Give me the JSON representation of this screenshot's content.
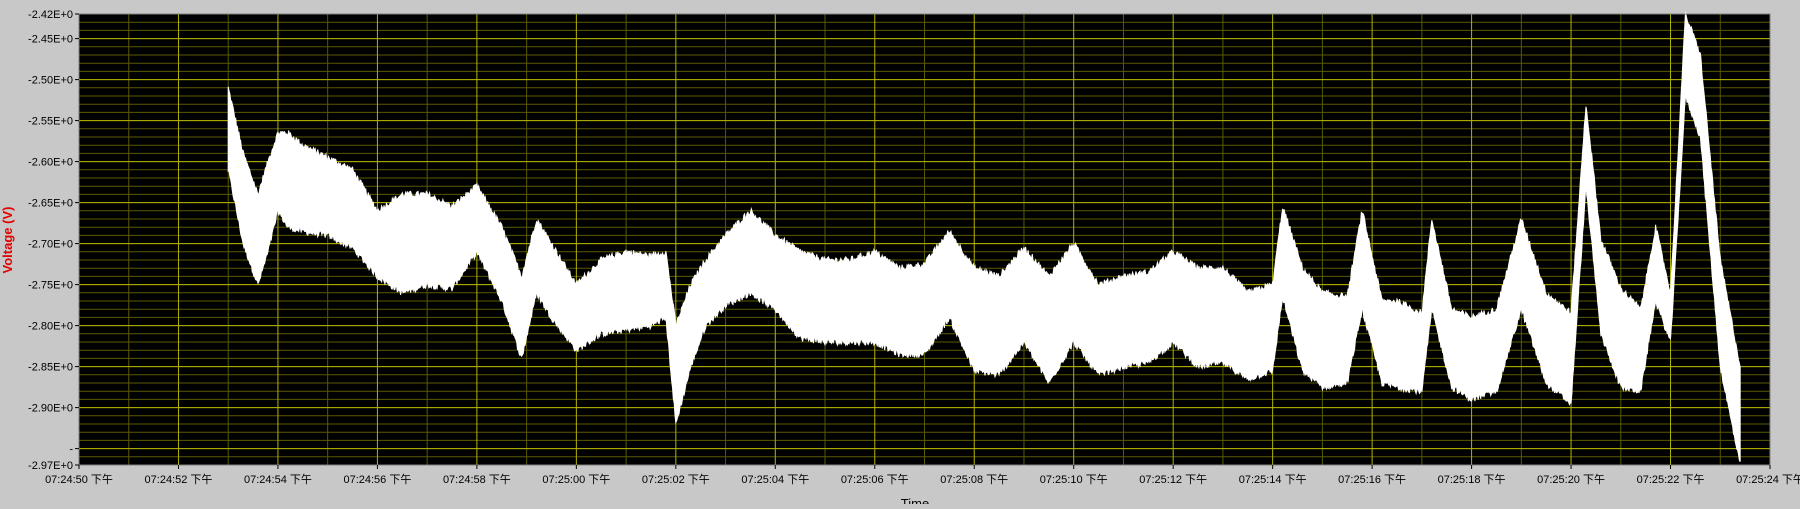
{
  "chart_data": {
    "type": "line",
    "title": "",
    "xlabel": "Time",
    "ylabel": "Voltage (V)",
    "colors": {
      "plot_background": "#000000",
      "frame_background": "#c8c8c8",
      "major_grid": "#b4b400",
      "minor_grid": "#5a5a00",
      "trace": "#ffffff",
      "ylabel": "#e00000",
      "tick_text": "#000000"
    },
    "grid": true,
    "legend": "none",
    "xlim": [
      "07:24:50",
      "07:25:24"
    ],
    "ylim": [
      -2.97,
      -2.42
    ],
    "x_ticks": [
      "07:24:50 下午",
      "07:24:52 下午",
      "07:24:54 下午",
      "07:24:56 下午",
      "07:24:58 下午",
      "07:25:00 下午",
      "07:25:02 下午",
      "07:25:04 下午",
      "07:25:06 下午",
      "07:25:08 下午",
      "07:25:10 下午",
      "07:25:12 下午",
      "07:25:14 下午",
      "07:25:16 下午",
      "07:25:18 下午",
      "07:25:20 下午",
      "07:25:22 下午",
      "07:25:24 下午"
    ],
    "y_ticks": [
      {
        "value": -2.42,
        "label": "-2.42E+0"
      },
      {
        "value": -2.45,
        "label": "-2.45E+0"
      },
      {
        "value": -2.5,
        "label": "-2.50E+0"
      },
      {
        "value": -2.55,
        "label": "-2.55E+0"
      },
      {
        "value": -2.6,
        "label": "-2.60E+0"
      },
      {
        "value": -2.65,
        "label": "-2.65E+0"
      },
      {
        "value": -2.7,
        "label": "-2.70E+0"
      },
      {
        "value": -2.75,
        "label": "-2.75E+0"
      },
      {
        "value": -2.8,
        "label": "-2.80E+0"
      },
      {
        "value": -2.85,
        "label": "-2.85E+0"
      },
      {
        "value": -2.9,
        "label": "-2.90E+0"
      },
      {
        "value": -2.95,
        "label": "-"
      },
      {
        "value": -2.97,
        "label": "-2.97E+0"
      }
    ],
    "series": [
      {
        "type": "envelope",
        "x": [
          "07:24:53.0",
          "07:24:53.3",
          "07:24:53.6",
          "07:24:53.8",
          "07:24:54.0",
          "07:24:54.2",
          "07:24:54.5",
          "07:24:55.0",
          "07:24:55.5",
          "07:24:56.0",
          "07:24:56.5",
          "07:24:57.0",
          "07:24:57.5",
          "07:24:58.0",
          "07:24:58.5",
          "07:24:58.9",
          "07:24:59.2",
          "07:24:59.5",
          "07:25:00.0",
          "07:25:00.5",
          "07:25:01.0",
          "07:25:01.5",
          "07:25:01.8",
          "07:25:02.0",
          "07:25:02.3",
          "07:25:02.6",
          "07:25:03.0",
          "07:25:03.5",
          "07:25:04.0",
          "07:25:04.5",
          "07:25:05.0",
          "07:25:05.5",
          "07:25:06.0",
          "07:25:06.5",
          "07:25:07.0",
          "07:25:07.5",
          "07:25:08.0",
          "07:25:08.5",
          "07:25:09.0",
          "07:25:09.5",
          "07:25:10.0",
          "07:25:10.5",
          "07:25:11.0",
          "07:25:11.5",
          "07:25:12.0",
          "07:25:12.5",
          "07:25:13.0",
          "07:25:13.5",
          "07:25:14.0",
          "07:25:14.2",
          "07:25:14.6",
          "07:25:15.0",
          "07:25:15.5",
          "07:25:15.8",
          "07:25:16.2",
          "07:25:16.5",
          "07:25:17.0",
          "07:25:17.2",
          "07:25:17.6",
          "07:25:18.0",
          "07:25:18.5",
          "07:25:19.0",
          "07:25:19.5",
          "07:25:20.0",
          "07:25:20.3",
          "07:25:20.6",
          "07:25:21.0",
          "07:25:21.4",
          "07:25:21.7",
          "07:25:22.0",
          "07:25:22.3",
          "07:25:22.6",
          "07:25:23.0",
          "07:25:23.4"
        ],
        "upper": [
          -2.51,
          -2.59,
          -2.64,
          -2.6,
          -2.565,
          -2.565,
          -2.58,
          -2.595,
          -2.61,
          -2.66,
          -2.64,
          -2.64,
          -2.655,
          -2.63,
          -2.68,
          -2.74,
          -2.67,
          -2.7,
          -2.75,
          -2.72,
          -2.71,
          -2.715,
          -2.71,
          -2.8,
          -2.75,
          -2.72,
          -2.69,
          -2.66,
          -2.69,
          -2.71,
          -2.72,
          -2.72,
          -2.71,
          -2.73,
          -2.725,
          -2.685,
          -2.73,
          -2.74,
          -2.705,
          -2.74,
          -2.7,
          -2.75,
          -2.74,
          -2.735,
          -2.71,
          -2.73,
          -2.73,
          -2.76,
          -2.75,
          -2.655,
          -2.73,
          -2.76,
          -2.765,
          -2.66,
          -2.77,
          -2.77,
          -2.785,
          -2.67,
          -2.78,
          -2.79,
          -2.78,
          -2.67,
          -2.76,
          -2.785,
          -2.53,
          -2.695,
          -2.755,
          -2.78,
          -2.68,
          -2.76,
          -2.42,
          -2.47,
          -2.72,
          -2.85
        ],
        "lower": [
          -2.61,
          -2.7,
          -2.75,
          -2.71,
          -2.66,
          -2.68,
          -2.685,
          -2.69,
          -2.705,
          -2.74,
          -2.76,
          -2.75,
          -2.755,
          -2.71,
          -2.77,
          -2.84,
          -2.76,
          -2.79,
          -2.83,
          -2.81,
          -2.805,
          -2.8,
          -2.79,
          -2.92,
          -2.85,
          -2.8,
          -2.775,
          -2.76,
          -2.78,
          -2.815,
          -2.82,
          -2.82,
          -2.82,
          -2.835,
          -2.835,
          -2.79,
          -2.855,
          -2.86,
          -2.82,
          -2.87,
          -2.82,
          -2.86,
          -2.85,
          -2.845,
          -2.82,
          -2.85,
          -2.845,
          -2.865,
          -2.855,
          -2.765,
          -2.855,
          -2.875,
          -2.87,
          -2.78,
          -2.87,
          -2.875,
          -2.88,
          -2.78,
          -2.875,
          -2.89,
          -2.88,
          -2.78,
          -2.87,
          -2.895,
          -2.63,
          -2.81,
          -2.875,
          -2.88,
          -2.77,
          -2.82,
          -2.52,
          -2.57,
          -2.85,
          -2.97
        ]
      }
    ]
  }
}
